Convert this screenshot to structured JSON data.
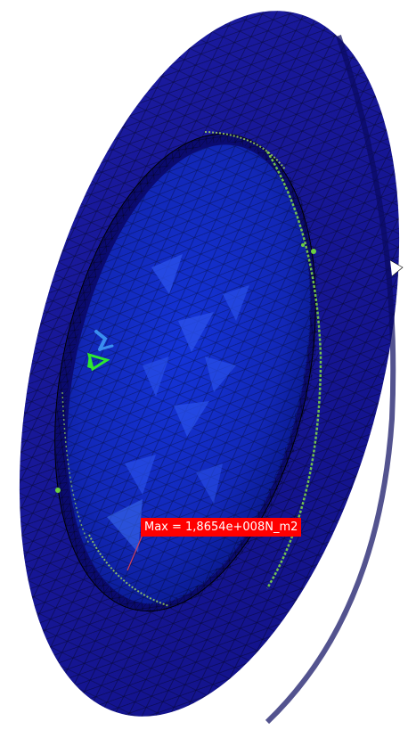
{
  "viewer": {
    "max_label": "Max = 1,8654e+008N_m2"
  },
  "colors": {
    "background": "#ffffff",
    "part_blue": "#1a1aa8",
    "part_blue_dark": "#0d0d80",
    "recess_blue": "#1f3ad0",
    "mesh_line": "#000000",
    "high_stress_green": "#7cd44a",
    "label_bg": "#ff0000",
    "label_text": "#ffffff",
    "leader_line": "#d04060"
  },
  "icons": {
    "constraint_marker": "fixed-constraint-icon",
    "max_pointer": "max-value-leader-line"
  }
}
